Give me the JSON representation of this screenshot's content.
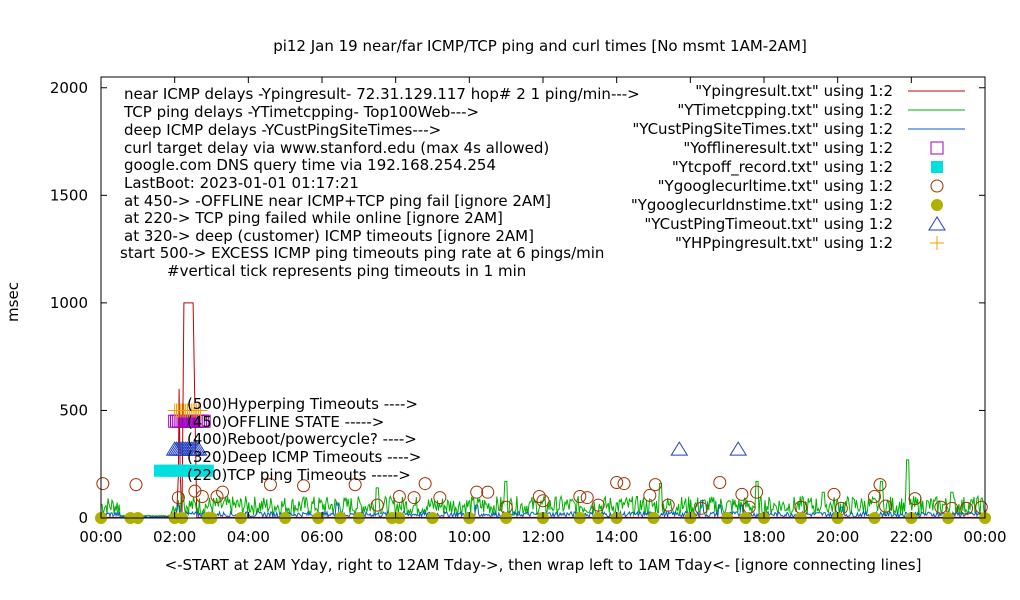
{
  "chart_data": {
    "type": "line",
    "title": "pi12  Jan 19  near/far ICMP/TCP ping and curl times [No msmt 1AM-2AM]",
    "xlabel": "<-START at 2AM Yday, right to 12AM Tday->, then wrap left to 1AM Tday<- [ignore connecting lines]",
    "ylabel": "msec",
    "xlim": [
      0,
      24
    ],
    "ylim": [
      0,
      2050
    ],
    "xticks": [
      "00:00",
      "02:00",
      "04:00",
      "06:00",
      "08:00",
      "10:00",
      "12:00",
      "14:00",
      "16:00",
      "18:00",
      "20:00",
      "22:00",
      "00:00"
    ],
    "yticks": [
      0,
      500,
      1000,
      1500,
      2000
    ],
    "grid": false,
    "legend_position": "top-right",
    "notes": [
      "near ICMP delays -Ypingresult- 72.31.129.117 hop# 2  1 ping/min--->",
      "TCP ping delays -YTimetcpping- Top100Web--->",
      "deep ICMP delays -YCustPingSiteTimes--->",
      "curl target delay via www.stanford.edu (max 4s allowed)",
      "google.com DNS query time via 192.168.254.254",
      "LastBoot: 2023-01-01 01:17:21",
      "at 450-> -OFFLINE near ICMP+TCP ping fail [ignore 2AM]",
      "at 220-> TCP ping failed while online [ignore 2AM]",
      "at 320-> deep (customer) ICMP timeouts [ignore 2AM]",
      "start 500-> EXCESS ICMP ping timeouts ping rate at 6 pings/min",
      "#vertical tick represents ping timeouts in 1 min"
    ],
    "annotations": [
      "(500)Hyperping Timeouts ---->",
      "(450)OFFLINE STATE ----->",
      "(400)Reboot/powercycle? ---->",
      "(320)Deep ICMP Timeouts ---->",
      "(220)TCP ping Timeouts ----->"
    ],
    "series": [
      {
        "name": "\"Ypingresult.txt\" using 1:2",
        "style": "line",
        "color": "#c00000",
        "x": [
          0.0,
          2.0,
          2.05,
          2.1,
          2.12,
          2.15,
          2.2,
          2.25,
          2.28,
          2.3,
          2.32,
          2.35,
          2.4,
          2.5,
          2.6,
          3.0,
          6.0,
          12.0,
          18.0,
          24.0
        ],
        "y": [
          3,
          3,
          3,
          200,
          600,
          200,
          10,
          1000,
          1000,
          1000,
          1000,
          1000,
          1000,
          1000,
          3,
          3,
          3,
          3,
          3,
          3
        ]
      },
      {
        "name": "\"YTimetcpping.txt\" using 1:2",
        "style": "noise",
        "color": "#00b000",
        "baseline": 40,
        "spread": 90,
        "spikes": [
          [
            2.2,
            110
          ],
          [
            7.5,
            140
          ],
          [
            11.0,
            170
          ],
          [
            15.2,
            160
          ],
          [
            17.8,
            170
          ],
          [
            19.6,
            120
          ],
          [
            21.2,
            170
          ],
          [
            21.9,
            270
          ],
          [
            23.1,
            120
          ]
        ]
      },
      {
        "name": "\"YCustPingSiteTimes.txt\" using 1:2",
        "style": "noise",
        "color": "#0060c0",
        "baseline": 15,
        "spread": 25,
        "spikes": [
          [
            2.1,
            60
          ],
          [
            6.4,
            70
          ],
          [
            10.2,
            60
          ],
          [
            16.3,
            80
          ],
          [
            16.8,
            60
          ],
          [
            17.4,
            60
          ],
          [
            20.1,
            50
          ]
        ]
      },
      {
        "name": "\"Yofflineresult.txt\" using 1:2",
        "style": "marker",
        "marker": "open-square",
        "color": "#a000c0",
        "x": [
          2.0,
          2.05,
          2.1,
          2.15,
          2.2,
          2.25,
          2.3,
          2.35,
          2.4,
          2.45,
          2.5,
          2.55,
          2.6,
          2.65,
          2.7,
          2.75,
          2.8
        ],
        "y": [
          450,
          450,
          450,
          450,
          450,
          450,
          450,
          450,
          450,
          450,
          450,
          450,
          450,
          450,
          450,
          450,
          450
        ]
      },
      {
        "name": "\"Ytcpoff_record.txt\" using 1:2",
        "style": "marker",
        "marker": "filled-square",
        "color": "#00e0e0",
        "x": [
          1.6,
          1.7,
          1.8,
          1.9,
          2.0,
          2.1,
          2.2,
          2.3,
          2.4,
          2.5,
          2.6,
          2.7,
          2.8,
          2.9
        ],
        "y": [
          220,
          220,
          220,
          220,
          220,
          220,
          220,
          220,
          220,
          220,
          220,
          220,
          220,
          220
        ]
      },
      {
        "name": "\"Ygooglecurltime.txt\" using 1:2",
        "style": "marker",
        "marker": "open-circle",
        "color": "#a03000",
        "x": [
          0.05,
          0.95,
          2.1,
          2.55,
          2.75,
          3.15,
          3.3,
          4.6,
          5.5,
          6.9,
          7.5,
          8.1,
          8.5,
          8.8,
          9.2,
          10.2,
          10.5,
          11.0,
          11.9,
          12.0,
          13.0,
          13.2,
          13.5,
          14.0,
          14.2,
          14.9,
          15.05,
          15.4,
          16.3,
          16.8,
          17.4,
          17.6,
          17.8,
          19.0,
          19.9,
          20.1,
          21.0,
          21.15,
          21.3,
          22.1,
          22.8,
          23.1,
          23.5,
          23.9
        ],
        "y": [
          160,
          155,
          95,
          125,
          100,
          100,
          120,
          155,
          150,
          155,
          60,
          100,
          95,
          160,
          95,
          120,
          120,
          50,
          100,
          80,
          100,
          95,
          60,
          165,
          160,
          105,
          155,
          60,
          45,
          165,
          110,
          50,
          120,
          50,
          110,
          45,
          100,
          155,
          55,
          90,
          50,
          45,
          45,
          50
        ]
      },
      {
        "name": "\"Ygooglecurldnstime.txt\" using 1:2",
        "style": "marker",
        "marker": "filled-circle",
        "color": "#b0b000",
        "x": [
          0.0,
          0.8,
          1.0,
          2.0,
          2.2,
          2.9,
          3.0,
          3.8,
          5.0,
          5.9,
          6.5,
          7.0,
          7.9,
          8.1,
          9.0,
          10.0,
          11.0,
          12.0,
          13.0,
          13.5,
          14.0,
          15.0,
          16.0,
          17.0,
          17.5,
          18.0,
          19.0,
          20.0,
          21.0,
          22.0,
          23.0,
          24.0
        ],
        "y": [
          0,
          0,
          0,
          0,
          0,
          0,
          0,
          0,
          0,
          0,
          0,
          0,
          0,
          0,
          0,
          0,
          0,
          0,
          0,
          0,
          0,
          0,
          0,
          0,
          0,
          0,
          0,
          0,
          0,
          0,
          0,
          0
        ]
      },
      {
        "name": "\"YCustPingTimeout.txt\" using 1:2",
        "style": "marker",
        "marker": "open-triangle",
        "color": "#2040c0",
        "x": [
          2.0,
          2.05,
          2.1,
          2.15,
          2.2,
          2.25,
          2.3,
          2.35,
          2.4,
          2.45,
          2.5,
          2.55,
          2.6,
          2.65,
          15.7,
          17.3
        ],
        "y": [
          320,
          320,
          320,
          320,
          320,
          320,
          320,
          320,
          320,
          320,
          320,
          320,
          320,
          320,
          320,
          320
        ]
      },
      {
        "name": "\"YHPpingresult.txt\" using 1:2",
        "style": "marker",
        "marker": "plus",
        "color": "#f0a000",
        "x": [
          2.0,
          2.05,
          2.1,
          2.15,
          2.2,
          2.25,
          2.3,
          2.35,
          2.4,
          2.45,
          2.5,
          2.55,
          2.6,
          2.65,
          2.7
        ],
        "y": [
          500,
          500,
          500,
          500,
          500,
          500,
          500,
          500,
          500,
          500,
          500,
          500,
          500,
          500,
          500
        ]
      }
    ]
  }
}
